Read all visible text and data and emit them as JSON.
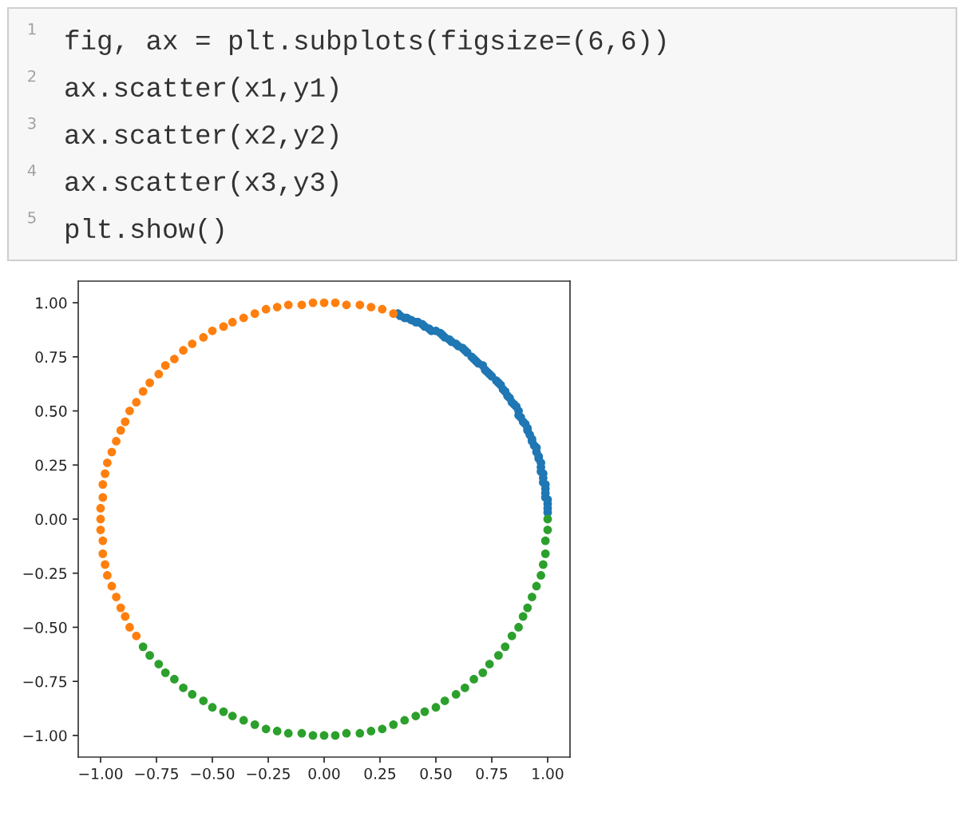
{
  "chart_data": {
    "type": "scatter",
    "marker": "circle",
    "xlim": [
      -1.1,
      1.1
    ],
    "ylim": [
      -1.1,
      1.1
    ],
    "annotations": [
      "1",
      "fig, ax = plt.subplots(figsize=(6,6))",
      "2",
      "ax.scatter(x1,y1)",
      "3",
      "ax.scatter(x2,y2)",
      "4",
      "ax.scatter(x3,y3)",
      "5",
      "plt.show()"
    ],
    "xticks": [
      {
        "value": -1,
        "label": "−1.00"
      },
      {
        "value": -0.75,
        "label": "−0.75"
      },
      {
        "value": -0.5,
        "label": "−0.50"
      },
      {
        "value": -0.25,
        "label": "−0.25"
      },
      {
        "value": 0,
        "label": "0.00"
      },
      {
        "value": 0.25,
        "label": "0.25"
      },
      {
        "value": 0.5,
        "label": "0.50"
      },
      {
        "value": 0.75,
        "label": "0.75"
      },
      {
        "value": 1,
        "label": "1.00"
      }
    ],
    "yticks": [
      {
        "value": -1,
        "label": "−1.00"
      },
      {
        "value": -0.75,
        "label": "−0.75"
      },
      {
        "value": -0.5,
        "label": "−0.50"
      },
      {
        "value": -0.25,
        "label": "−0.25"
      },
      {
        "value": 0,
        "label": "0.00"
      },
      {
        "value": 0.25,
        "label": "0.25"
      },
      {
        "value": 0.5,
        "label": "0.50"
      },
      {
        "value": 0.75,
        "label": "0.75"
      },
      {
        "value": 1,
        "label": "1.00"
      }
    ],
    "series": [
      {
        "color": "#1f77b4",
        "x": [
          1.0,
          1.0,
          1.0,
          1.0,
          0.99,
          0.99,
          0.99,
          0.99,
          0.98,
          0.98,
          0.98,
          0.97,
          0.97,
          0.97,
          0.96,
          0.96,
          0.95,
          0.95,
          0.94,
          0.93,
          0.93,
          0.92,
          0.91,
          0.91,
          0.9,
          0.89,
          0.88,
          0.87,
          0.87,
          0.86,
          0.85,
          0.84,
          0.83,
          0.82,
          0.81,
          0.8,
          0.79,
          0.78,
          0.77,
          0.75,
          0.74,
          0.73,
          0.72,
          0.71,
          0.69,
          0.68,
          0.67,
          0.66,
          0.64,
          0.63,
          0.62,
          0.6,
          0.59,
          0.57,
          0.56,
          0.54,
          0.53,
          0.52,
          0.5,
          0.48,
          0.47,
          0.45,
          0.44,
          0.42,
          0.41,
          0.39,
          0.37,
          0.36,
          0.34,
          0.33
        ],
        "values": [
          0.03,
          0.05,
          0.07,
          0.09,
          0.1,
          0.12,
          0.14,
          0.16,
          0.17,
          0.19,
          0.21,
          0.22,
          0.24,
          0.26,
          0.28,
          0.29,
          0.31,
          0.33,
          0.34,
          0.36,
          0.37,
          0.39,
          0.41,
          0.42,
          0.44,
          0.45,
          0.47,
          0.48,
          0.5,
          0.52,
          0.53,
          0.54,
          0.56,
          0.57,
          0.59,
          0.6,
          0.62,
          0.63,
          0.64,
          0.66,
          0.67,
          0.68,
          0.69,
          0.71,
          0.72,
          0.73,
          0.74,
          0.75,
          0.77,
          0.78,
          0.79,
          0.8,
          0.81,
          0.82,
          0.83,
          0.84,
          0.85,
          0.86,
          0.87,
          0.87,
          0.88,
          0.89,
          0.9,
          0.91,
          0.91,
          0.92,
          0.93,
          0.93,
          0.94,
          0.95
        ]
      },
      {
        "color": "#ff7f0e",
        "x": [
          0.31,
          0.26,
          0.21,
          0.16,
          0.1,
          0.05,
          0.0,
          -0.05,
          -0.1,
          -0.16,
          -0.21,
          -0.26,
          -0.31,
          -0.36,
          -0.41,
          -0.45,
          -0.5,
          -0.54,
          -0.59,
          -0.63,
          -0.67,
          -0.71,
          -0.74,
          -0.78,
          -0.81,
          -0.84,
          -0.87,
          -0.89,
          -0.91,
          -0.93,
          -0.95,
          -0.97,
          -0.98,
          -0.99,
          -0.99,
          -1.0,
          -1.0,
          -1.0,
          -0.99,
          -0.99,
          -0.98,
          -0.97,
          -0.95,
          -0.93,
          -0.91,
          -0.89,
          -0.87,
          -0.84
        ],
        "values": [
          0.95,
          0.97,
          0.98,
          0.99,
          0.99,
          1.0,
          1.0,
          1.0,
          0.99,
          0.99,
          0.98,
          0.97,
          0.95,
          0.93,
          0.91,
          0.89,
          0.87,
          0.84,
          0.81,
          0.78,
          0.74,
          0.71,
          0.67,
          0.63,
          0.59,
          0.54,
          0.5,
          0.45,
          0.41,
          0.36,
          0.31,
          0.26,
          0.21,
          0.16,
          0.1,
          0.05,
          0.0,
          -0.05,
          -0.1,
          -0.16,
          -0.21,
          -0.26,
          -0.31,
          -0.36,
          -0.41,
          -0.45,
          -0.5,
          -0.54
        ]
      },
      {
        "color": "#2ca02c",
        "x": [
          -0.81,
          -0.78,
          -0.74,
          -0.71,
          -0.67,
          -0.63,
          -0.59,
          -0.54,
          -0.5,
          -0.45,
          -0.41,
          -0.36,
          -0.31,
          -0.26,
          -0.21,
          -0.16,
          -0.1,
          -0.05,
          0.0,
          0.05,
          0.1,
          0.16,
          0.21,
          0.26,
          0.31,
          0.36,
          0.41,
          0.45,
          0.5,
          0.54,
          0.59,
          0.63,
          0.67,
          0.71,
          0.74,
          0.78,
          0.81,
          0.84,
          0.87,
          0.89,
          0.91,
          0.93,
          0.95,
          0.97,
          0.98,
          0.99,
          0.99,
          1.0,
          1.0
        ],
        "values": [
          -0.59,
          -0.63,
          -0.67,
          -0.71,
          -0.74,
          -0.78,
          -0.81,
          -0.84,
          -0.87,
          -0.89,
          -0.91,
          -0.93,
          -0.95,
          -0.97,
          -0.98,
          -0.99,
          -0.99,
          -1.0,
          -1.0,
          -1.0,
          -0.99,
          -0.99,
          -0.98,
          -0.97,
          -0.95,
          -0.93,
          -0.91,
          -0.89,
          -0.87,
          -0.84,
          -0.81,
          -0.78,
          -0.74,
          -0.71,
          -0.67,
          -0.63,
          -0.59,
          -0.54,
          -0.5,
          -0.45,
          -0.41,
          -0.36,
          -0.31,
          -0.26,
          -0.21,
          -0.16,
          -0.1,
          -0.05,
          0.0
        ]
      }
    ]
  }
}
